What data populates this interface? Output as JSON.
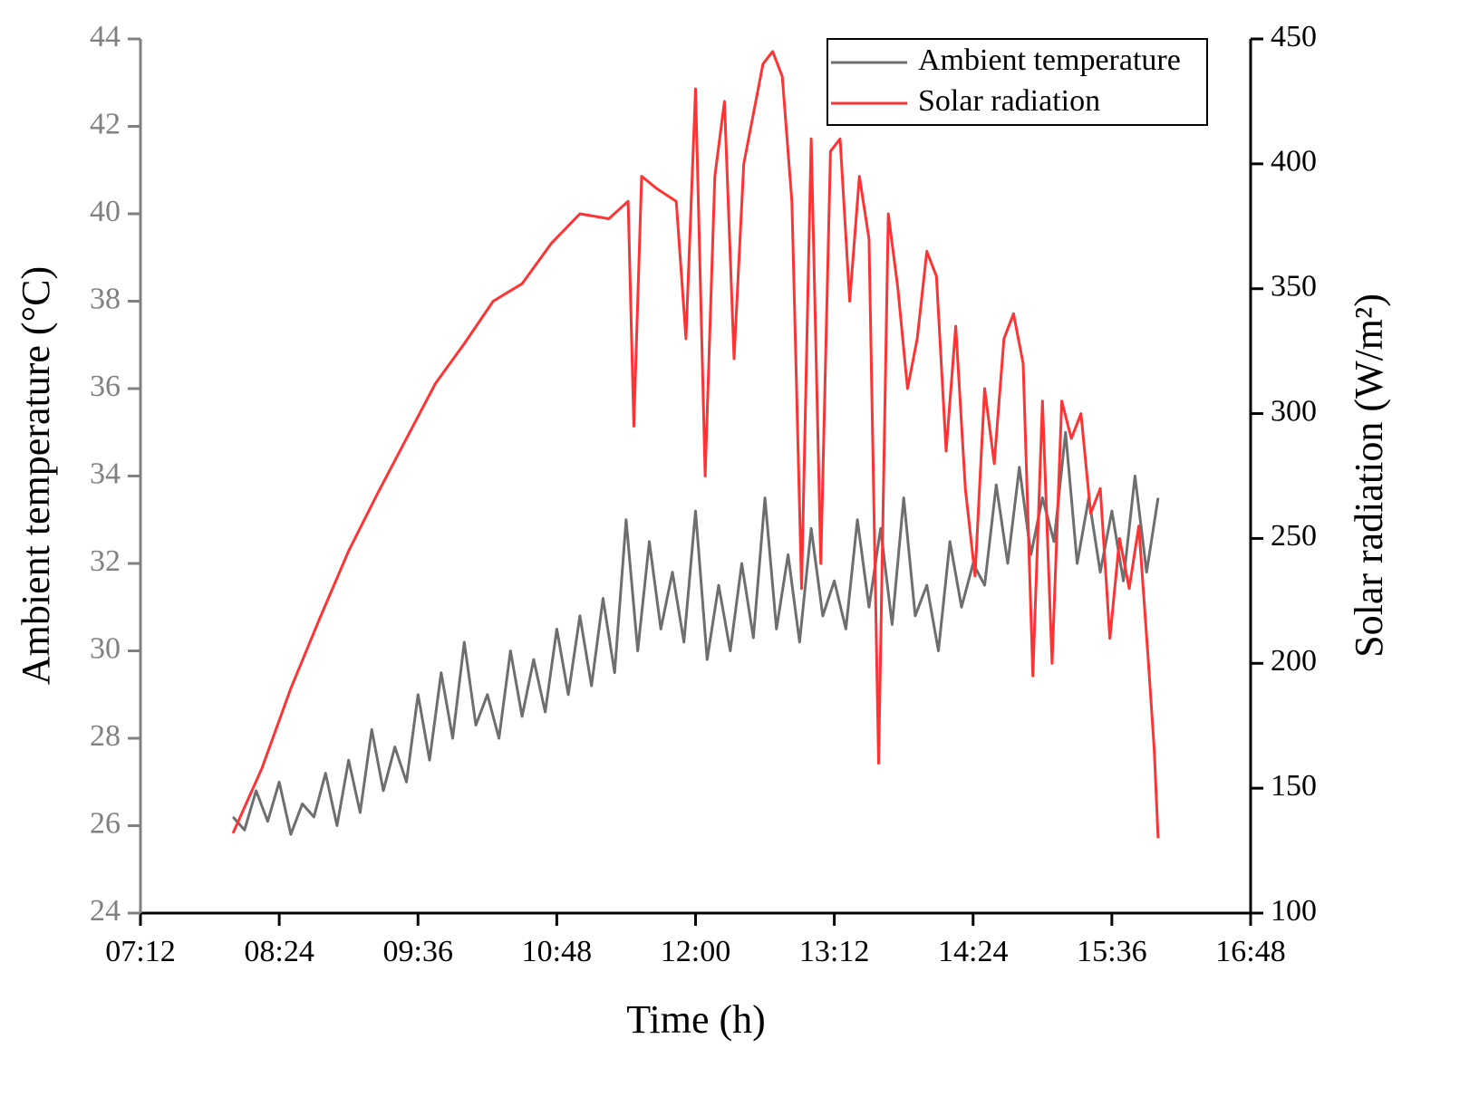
{
  "chart_data": {
    "type": "line",
    "xlabel": "Time (h)",
    "ylabel": "Ambient temperature (°C)",
    "y2label": "Solar radiation (W/m²)",
    "xlim": [
      432,
      1008
    ],
    "xticks": [
      {
        "value": 432,
        "label": "07:12"
      },
      {
        "value": 504,
        "label": "08:24"
      },
      {
        "value": 576,
        "label": "09:36"
      },
      {
        "value": 648,
        "label": "10:48"
      },
      {
        "value": 720,
        "label": "12:00"
      },
      {
        "value": 792,
        "label": "13:12"
      },
      {
        "value": 864,
        "label": "14:24"
      },
      {
        "value": 936,
        "label": "15:36"
      },
      {
        "value": 1008,
        "label": "16:48"
      }
    ],
    "ylim": [
      24,
      44
    ],
    "yticks": [
      24,
      26,
      28,
      30,
      32,
      34,
      36,
      38,
      40,
      42,
      44
    ],
    "y2lim": [
      100,
      450
    ],
    "y2ticks": [
      100,
      150,
      200,
      250,
      300,
      350,
      400,
      450
    ],
    "legend": "upper right",
    "series": [
      {
        "name": "Ambient temperature",
        "color": "#6e6e6e",
        "axis": "y",
        "x": [
          480,
          486,
          492,
          498,
          504,
          510,
          516,
          522,
          528,
          534,
          540,
          546,
          552,
          558,
          564,
          570,
          576,
          582,
          588,
          594,
          600,
          606,
          612,
          618,
          624,
          630,
          636,
          642,
          648,
          654,
          660,
          666,
          672,
          678,
          684,
          690,
          696,
          702,
          708,
          714,
          720,
          726,
          732,
          738,
          744,
          750,
          756,
          762,
          768,
          774,
          780,
          786,
          792,
          798,
          804,
          810,
          816,
          822,
          828,
          834,
          840,
          846,
          852,
          858,
          864,
          870,
          876,
          882,
          888,
          894,
          900,
          906,
          912,
          918,
          924,
          930,
          936,
          942,
          948,
          954,
          960
        ],
        "values": [
          26.2,
          25.9,
          26.8,
          26.1,
          27.0,
          25.8,
          26.5,
          26.2,
          27.2,
          26.0,
          27.5,
          26.3,
          28.2,
          26.8,
          27.8,
          27.0,
          29.0,
          27.5,
          29.5,
          28.0,
          30.2,
          28.3,
          29.0,
          28.0,
          30.0,
          28.5,
          29.8,
          28.6,
          30.5,
          29.0,
          30.8,
          29.2,
          31.2,
          29.5,
          33.0,
          30.0,
          32.5,
          30.5,
          31.8,
          30.2,
          33.2,
          29.8,
          31.5,
          30.0,
          32.0,
          30.3,
          33.5,
          30.5,
          32.2,
          30.2,
          32.8,
          30.8,
          31.6,
          30.5,
          33.0,
          31.0,
          32.8,
          30.6,
          33.5,
          30.8,
          31.5,
          30.0,
          32.5,
          31.0,
          32.0,
          31.5,
          33.8,
          32.0,
          34.2,
          32.2,
          33.5,
          32.5,
          35.0,
          32.0,
          33.5,
          31.8,
          33.2,
          31.6,
          34.0,
          31.8,
          33.5
        ]
      },
      {
        "name": "Solar radiation",
        "color": "#ff3333",
        "axis": "y2",
        "x": [
          480,
          495,
          510,
          525,
          540,
          555,
          570,
          585,
          600,
          615,
          630,
          645,
          660,
          675,
          685,
          688,
          692,
          700,
          710,
          715,
          720,
          725,
          730,
          735,
          740,
          745,
          755,
          760,
          765,
          770,
          775,
          780,
          785,
          790,
          795,
          800,
          805,
          810,
          815,
          820,
          825,
          830,
          835,
          840,
          845,
          850,
          855,
          860,
          865,
          870,
          875,
          880,
          885,
          890,
          895,
          900,
          905,
          910,
          915,
          920,
          925,
          930,
          935,
          940,
          945,
          950,
          955,
          958,
          960
        ],
        "values": [
          132,
          158,
          190,
          218,
          245,
          268,
          290,
          312,
          328,
          345,
          352,
          368,
          380,
          378,
          385,
          295,
          395,
          390,
          385,
          330,
          430,
          275,
          395,
          425,
          322,
          400,
          440,
          445,
          435,
          385,
          230,
          410,
          240,
          405,
          410,
          345,
          395,
          370,
          160,
          380,
          350,
          310,
          330,
          365,
          355,
          285,
          335,
          270,
          235,
          310,
          280,
          330,
          340,
          320,
          195,
          305,
          200,
          305,
          290,
          300,
          260,
          270,
          210,
          250,
          230,
          255,
          200,
          165,
          130
        ]
      }
    ]
  }
}
